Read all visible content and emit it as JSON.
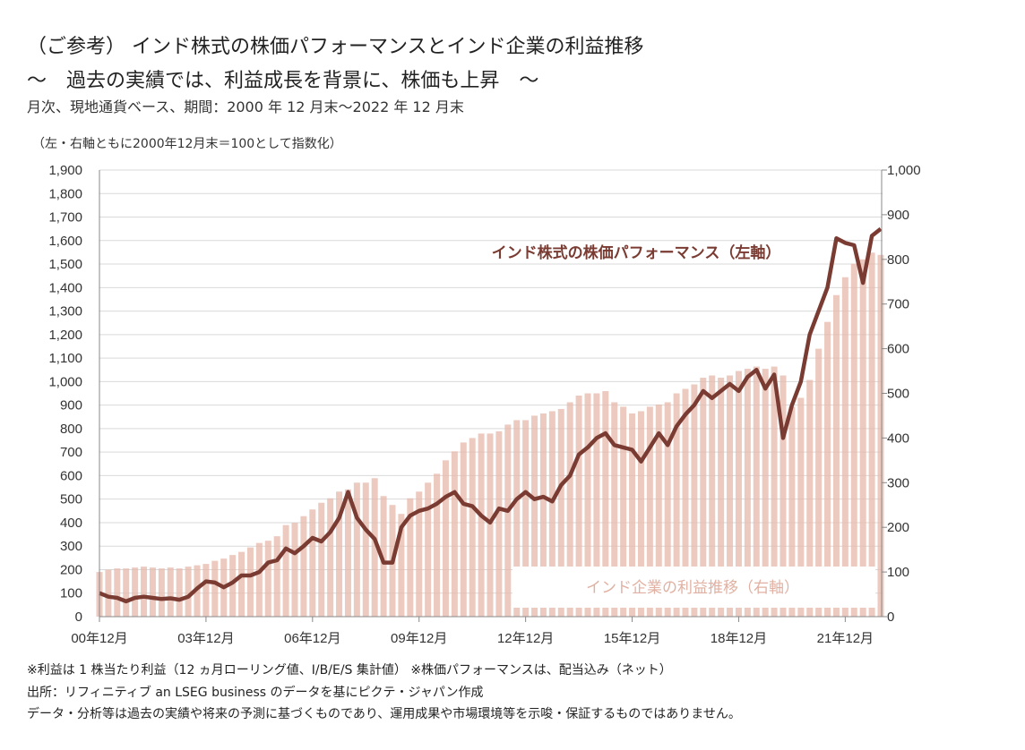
{
  "header": {
    "title_line1": "（ご参考） インド株式の株価パフォーマンスとインド企業の利益推移",
    "title_line2": "～　過去の実績では、利益成長を背景に、株価も上昇　～",
    "subtitle": "月次、現地通貨ベース、期間：2000 年 12 月末～2022 年 12 月末",
    "note": "（左・右軸ともに2000年12月末＝100として指数化）"
  },
  "footnotes": [
    "※利益は 1 株当たり利益（12 ヵ月ローリング値、I/B/E/S 集計値） ※株価パフォーマンスは、配当込み（ネット）",
    "出所：リフィニティブ an LSEG business のデータを基にピクテ・ジャパン作成",
    "データ・分析等は過去の実績や将来の予測に基づくものであり、運用成果や市場環境等を示唆・保証するものではありません。"
  ],
  "chart_data": {
    "type": "bar+line",
    "colors": {
      "price_line": "#7a3b32",
      "eps_bars": "#e6b8aa",
      "grid": "#d9d9d9"
    },
    "grid": true,
    "x_tick_labels": [
      "00年12月",
      "03年12月",
      "06年12月",
      "09年12月",
      "12年12月",
      "15年12月",
      "18年12月",
      "21年12月"
    ],
    "left_axis": {
      "ylim": [
        0,
        1900
      ],
      "ticks": [
        "0",
        "100",
        "200",
        "300",
        "400",
        "500",
        "600",
        "700",
        "800",
        "900",
        "1,000",
        "1,100",
        "1,200",
        "1,300",
        "1,400",
        "1,500",
        "1,600",
        "1,700",
        "1,800",
        "1,900"
      ]
    },
    "right_axis": {
      "ylim": [
        0,
        1000
      ],
      "ticks": [
        "0",
        "100",
        "200",
        "300",
        "400",
        "500",
        "600",
        "700",
        "800",
        "900",
        "1,000"
      ]
    },
    "x": [
      "2000-12",
      "2001-03",
      "2001-06",
      "2001-09",
      "2001-12",
      "2002-03",
      "2002-06",
      "2002-09",
      "2002-12",
      "2003-03",
      "2003-06",
      "2003-09",
      "2003-12",
      "2004-03",
      "2004-06",
      "2004-09",
      "2004-12",
      "2005-03",
      "2005-06",
      "2005-09",
      "2005-12",
      "2006-03",
      "2006-06",
      "2006-09",
      "2006-12",
      "2007-03",
      "2007-06",
      "2007-09",
      "2007-12",
      "2008-03",
      "2008-06",
      "2008-09",
      "2008-12",
      "2009-03",
      "2009-06",
      "2009-09",
      "2009-12",
      "2010-03",
      "2010-06",
      "2010-09",
      "2010-12",
      "2011-03",
      "2011-06",
      "2011-09",
      "2011-12",
      "2012-03",
      "2012-06",
      "2012-09",
      "2012-12",
      "2013-03",
      "2013-06",
      "2013-09",
      "2013-12",
      "2014-03",
      "2014-06",
      "2014-09",
      "2014-12",
      "2015-03",
      "2015-06",
      "2015-09",
      "2015-12",
      "2016-03",
      "2016-06",
      "2016-09",
      "2016-12",
      "2017-03",
      "2017-06",
      "2017-09",
      "2017-12",
      "2018-03",
      "2018-06",
      "2018-09",
      "2018-12",
      "2019-03",
      "2019-06",
      "2019-09",
      "2019-12",
      "2020-03",
      "2020-06",
      "2020-09",
      "2020-12",
      "2021-03",
      "2021-06",
      "2021-09",
      "2021-12",
      "2022-03",
      "2022-06",
      "2022-09",
      "2022-12"
    ],
    "series": [
      {
        "name": "インド株式の株価パフォーマンス（左軸）",
        "axis": "left",
        "kind": "line",
        "values": [
          100,
          85,
          80,
          65,
          80,
          85,
          80,
          75,
          78,
          72,
          85,
          120,
          150,
          145,
          125,
          145,
          175,
          175,
          190,
          230,
          240,
          290,
          270,
          300,
          335,
          320,
          360,
          420,
          530,
          420,
          370,
          330,
          230,
          230,
          380,
          430,
          450,
          460,
          480,
          510,
          530,
          480,
          470,
          430,
          400,
          460,
          450,
          500,
          530,
          500,
          510,
          490,
          560,
          600,
          690,
          720,
          760,
          780,
          730,
          720,
          710,
          660,
          720,
          780,
          730,
          810,
          860,
          900,
          960,
          930,
          960,
          990,
          960,
          1020,
          1050,
          970,
          1030,
          760,
          900,
          1000,
          1200,
          1300,
          1400,
          1610,
          1590,
          1580,
          1420,
          1620,
          1650
        ]
      },
      {
        "name": "インド企業の利益推移（右軸）",
        "axis": "right",
        "kind": "bar",
        "values": [
          100,
          105,
          108,
          108,
          110,
          112,
          110,
          108,
          110,
          108,
          112,
          115,
          118,
          125,
          130,
          138,
          145,
          155,
          165,
          170,
          180,
          205,
          210,
          225,
          240,
          255,
          265,
          280,
          285,
          300,
          300,
          310,
          270,
          250,
          230,
          265,
          280,
          300,
          320,
          350,
          370,
          390,
          400,
          410,
          410,
          415,
          430,
          440,
          440,
          450,
          455,
          460,
          465,
          480,
          495,
          500,
          500,
          505,
          480,
          470,
          455,
          460,
          470,
          475,
          480,
          500,
          510,
          520,
          535,
          540,
          535,
          540,
          550,
          555,
          560,
          555,
          560,
          540,
          470,
          490,
          530,
          600,
          660,
          720,
          760,
          790,
          800,
          815,
          810
        ]
      }
    ]
  }
}
